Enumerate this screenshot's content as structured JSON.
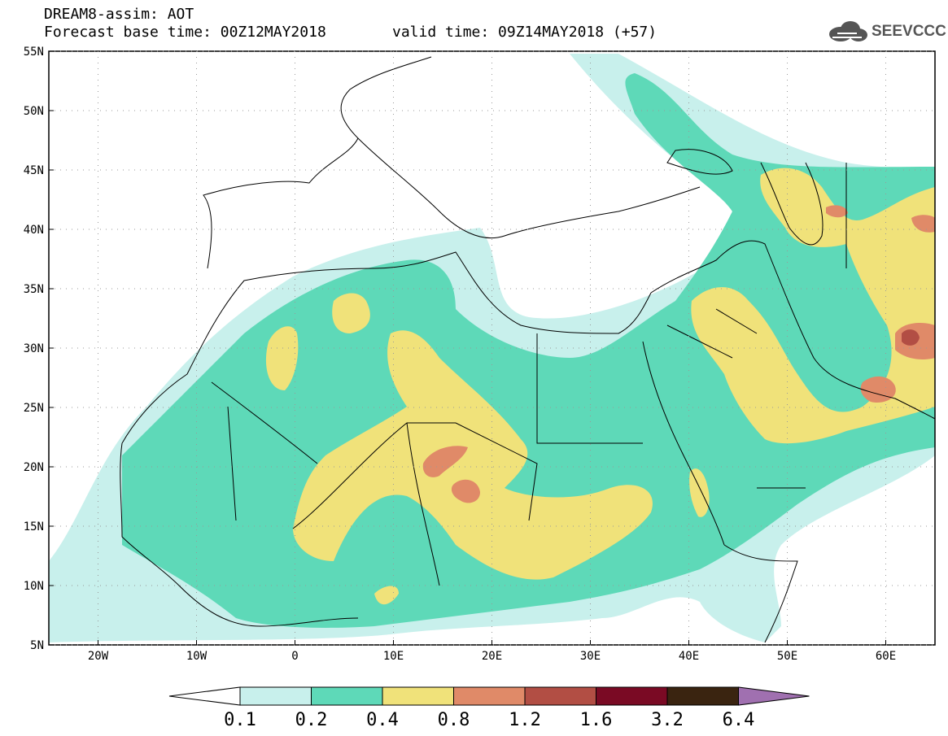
{
  "header": {
    "title": "DREAM8-assim: AOT",
    "base_time": "Forecast base time: 00Z12MAY2018",
    "valid_time": "valid time: 09Z14MAY2018 (+57)"
  },
  "logo": {
    "text": "SEEVCCC",
    "icon": "cloud-icon"
  },
  "map": {
    "projection": "lat-lon",
    "lon_range": [
      -25,
      65
    ],
    "lat_range": [
      5,
      55
    ],
    "lon_ticks": [
      "20W",
      "10W",
      "0",
      "10E",
      "20E",
      "30E",
      "40E",
      "50E",
      "60E"
    ],
    "lat_ticks": [
      "5N",
      "10N",
      "15N",
      "20N",
      "25N",
      "30N",
      "35N",
      "40N",
      "45N",
      "50N",
      "55N"
    ]
  },
  "colorbar": {
    "labels": [
      "0.1",
      "0.2",
      "0.4",
      "0.8",
      "1.2",
      "1.6",
      "3.2",
      "6.4"
    ],
    "colors": [
      "#c8f0ec",
      "#5ed9b8",
      "#f0e27a",
      "#e08a68",
      "#b24e44",
      "#7a0a24",
      "#3a2410",
      "#a070b0"
    ],
    "under_color": "#ffffff",
    "over_color": "#a070b0"
  },
  "colors": {
    "level1": "#c8f0ec",
    "level2": "#5ed9b8",
    "level3": "#f0e27a",
    "level4": "#e08a68",
    "level5": "#b24e44"
  }
}
